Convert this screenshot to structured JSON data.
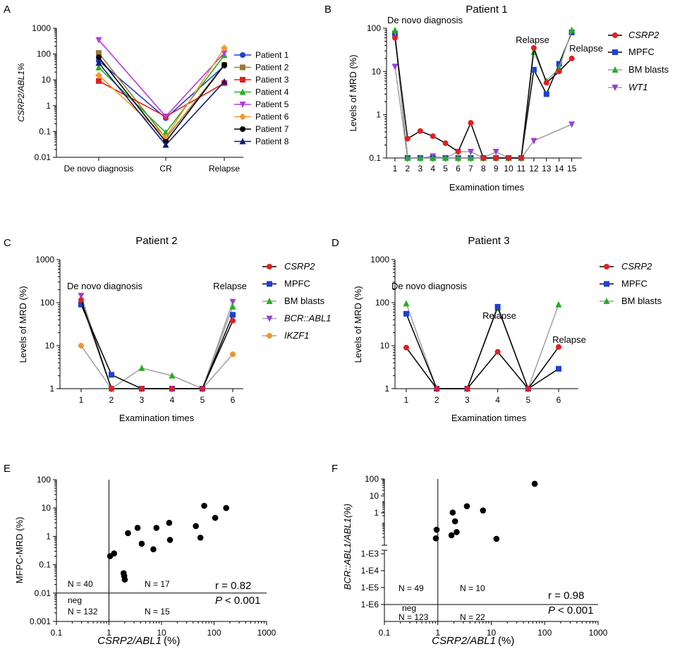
{
  "colors": {
    "patient": [
      "#1f3fd6",
      "#9a7a32",
      "#e02020",
      "#22b022",
      "#b23ee0",
      "#f39a2a",
      "#000000",
      "#101a7a"
    ],
    "csrp2": "#e02020",
    "mpfc": "#1f3fd6",
    "bm": "#22b022",
    "purple": "#9b3ed6",
    "orange": "#f0962a",
    "gray": "#a0a0a0"
  },
  "chart_data": [
    {
      "panel": "A",
      "type": "line",
      "ylabel": "CSRP2/ABL1%",
      "yscale": "log",
      "ylim": [
        0.01,
        1000
      ],
      "ytick_labels": [
        "0.01",
        "0.1",
        "1",
        "10",
        "100",
        "1000"
      ],
      "categories": [
        "De novo diagnosis",
        "CR",
        "Relapse"
      ],
      "series": [
        {
          "name": "Patient 1",
          "values": [
            55,
            0.33,
            35
          ]
        },
        {
          "name": "Patient 2",
          "values": [
            110,
            0.055,
            38
          ]
        },
        {
          "name": "Patient 3",
          "values": [
            9,
            0.38,
            7.5
          ]
        },
        {
          "name": "Patient 4",
          "values": [
            30,
            0.09,
            90
          ]
        },
        {
          "name": "Patient 5",
          "values": [
            350,
            0.38,
            110
          ]
        },
        {
          "name": "Patient 6",
          "values": [
            15,
            0.06,
            170
          ]
        },
        {
          "name": "Patient 7",
          "values": [
            75,
            0.04,
            38
          ]
        },
        {
          "name": "Patient 8",
          "values": [
            45,
            0.03,
            8.5
          ]
        }
      ]
    },
    {
      "panel": "B",
      "type": "line",
      "title": "Patient 1",
      "xlabel": "Examination times",
      "ylabel": "Levels of MRD (%)",
      "yscale": "log",
      "ylim": [
        0.1,
        100
      ],
      "ytick_labels": [
        "0.1",
        "1",
        "10",
        "100"
      ],
      "x": [
        1,
        2,
        3,
        4,
        5,
        6,
        7,
        8,
        9,
        10,
        11,
        12,
        13,
        14,
        15
      ],
      "annotations": [
        "De novo diagnosis",
        "Relapse",
        "Relapse"
      ],
      "series": [
        {
          "name": "CSRP2",
          "values": [
            60,
            0.28,
            0.42,
            0.32,
            0.22,
            0.14,
            0.65,
            0.1,
            0.1,
            0.1,
            0.1,
            35,
            5.5,
            10,
            20
          ]
        },
        {
          "name": "MPFC",
          "values": [
            75,
            0.1,
            0.1,
            0.1,
            0.1,
            0.1,
            0.1,
            0.1,
            0.1,
            0.1,
            0.1,
            11,
            3,
            15,
            80
          ]
        },
        {
          "name": "BM blasts",
          "values": [
            90,
            0.1,
            0.1,
            0.1,
            0.1,
            0.1,
            0.1,
            0.1,
            0.1,
            0.1,
            0.1,
            28,
            6,
            12,
            90
          ]
        },
        {
          "name": "WT1",
          "values": [
            13,
            0.1,
            0.1,
            0.11,
            0.1,
            0.14,
            0.14,
            0.1,
            0.14,
            0.1,
            0.1,
            0.25,
            null,
            null,
            0.6
          ]
        }
      ]
    },
    {
      "panel": "C",
      "type": "line",
      "title": "Patient 2",
      "xlabel": "Examination times",
      "ylabel": "Levels of MRD (%)",
      "yscale": "log",
      "ylim": [
        1,
        1000
      ],
      "ytick_labels": [
        "1",
        "10",
        "100",
        "1000"
      ],
      "x": [
        1,
        2,
        3,
        4,
        5,
        6
      ],
      "annotations": [
        "De novo diagnosis",
        "Relapse"
      ],
      "series": [
        {
          "name": "CSRP2",
          "values": [
            115,
            1,
            1,
            1,
            1,
            38
          ]
        },
        {
          "name": "MPFC",
          "values": [
            90,
            2.1,
            1,
            1,
            1,
            52
          ]
        },
        {
          "name": "BM blasts",
          "values": [
            100,
            1,
            3,
            2,
            1,
            80
          ]
        },
        {
          "name": "BCR::ABL1",
          "values": [
            145,
            1,
            1,
            1,
            1,
            105
          ]
        },
        {
          "name": "IKZF1",
          "values": [
            10,
            1,
            1,
            1,
            1,
            6.3
          ]
        }
      ]
    },
    {
      "panel": "D",
      "type": "line",
      "title": "Patient 3",
      "xlabel": "Examination times",
      "ylabel": "Levels of MRD (%)",
      "yscale": "log",
      "ylim": [
        1,
        1000
      ],
      "ytick_labels": [
        "1",
        "10",
        "100",
        "1000"
      ],
      "x": [
        1,
        2,
        3,
        4,
        5,
        6
      ],
      "annotations": [
        "De novo diagnosis",
        "Relapse",
        "Relapse"
      ],
      "series": [
        {
          "name": "CSRP2",
          "values": [
            9,
            1,
            1,
            7.2,
            1,
            9.3
          ]
        },
        {
          "name": "MPFC",
          "values": [
            55,
            1,
            1,
            80,
            1,
            2.9
          ]
        },
        {
          "name": "BM blasts",
          "values": [
            95,
            1,
            1,
            75,
            1,
            90
          ]
        }
      ]
    },
    {
      "panel": "E",
      "type": "scatter",
      "xlabel": "CSRP2/ABL1 (%)",
      "ylabel": "MFPC-MRD  (%)",
      "xscale": "log",
      "yscale": "log",
      "xlim": [
        0.1,
        1000
      ],
      "ylim": [
        0.001,
        100
      ],
      "xtick_labels": [
        "0.1",
        "1",
        "10",
        "100",
        "1000"
      ],
      "ytick_labels": [
        "0.001",
        "0.01",
        "0.1",
        "1",
        "10",
        "100"
      ],
      "cutoff_x": 1,
      "cutoff_y": 0.01,
      "points": [
        [
          1.05,
          0.2
        ],
        [
          1.25,
          0.25
        ],
        [
          1.9,
          0.05
        ],
        [
          1.95,
          0.04
        ],
        [
          2,
          0.03
        ],
        [
          2.3,
          1.3
        ],
        [
          3.5,
          2
        ],
        [
          4.2,
          0.55
        ],
        [
          7,
          0.35
        ],
        [
          8,
          2
        ],
        [
          14,
          3
        ],
        [
          14.5,
          0.75
        ],
        [
          45,
          2.3
        ],
        [
          55,
          0.9
        ],
        [
          65,
          12
        ],
        [
          105,
          4.5
        ],
        [
          170,
          10
        ]
      ],
      "quadrant_labels": [
        "N = 40",
        "N = 17",
        "neg",
        "N = 132",
        "N = 15"
      ],
      "stats": [
        "r = 0.82",
        "P",
        "< 0.001"
      ]
    },
    {
      "panel": "F",
      "type": "scatter",
      "xlabel": "CSRP2/ABL1 (%)",
      "ylabel": "BCR::ABL1/ABL1(%)",
      "xscale": "log",
      "xlim": [
        0.1,
        1000
      ],
      "xtick_labels": [
        "0.1",
        "1",
        "10",
        "100",
        "1000"
      ],
      "ytick_labels": [
        "100",
        "10",
        "1",
        "1-E3",
        "1-E4",
        "1-E5",
        "1-E6"
      ],
      "cutoff_x": 1,
      "cutoff_y": "1-E6",
      "points": [
        [
          0.92,
          0.18
        ],
        [
          0.95,
          0.45
        ],
        [
          1.8,
          0.25
        ],
        [
          1.9,
          2.8
        ],
        [
          2.1,
          1.1
        ],
        [
          2.25,
          0.35
        ],
        [
          3.5,
          5.5
        ],
        [
          7,
          3.5
        ],
        [
          12.5,
          0.17
        ],
        [
          65,
          60
        ]
      ],
      "quadrant_labels": [
        "N = 49",
        "N = 10",
        "neg",
        "N = 123",
        "N = 22"
      ],
      "stats": [
        "r = 0.98",
        "P",
        "< 0.001"
      ]
    }
  ],
  "legends": {
    "A": [
      "Patient 1",
      "Patient 2",
      "Patient 3",
      "Patient 4",
      "Patient 5",
      "Patient 6",
      "Patient 7",
      "Patient 8"
    ],
    "B": [
      "CSRP2",
      "MPFC",
      "BM blasts",
      "WT1"
    ],
    "C": [
      "CSRP2",
      "MPFC",
      "BM blasts",
      "BCR::ABL1",
      "IKZF1"
    ],
    "D": [
      "CSRP2",
      "MPFC",
      "BM blasts"
    ]
  },
  "panel_labels": [
    "A",
    "B",
    "C",
    "D",
    "E",
    "F"
  ]
}
